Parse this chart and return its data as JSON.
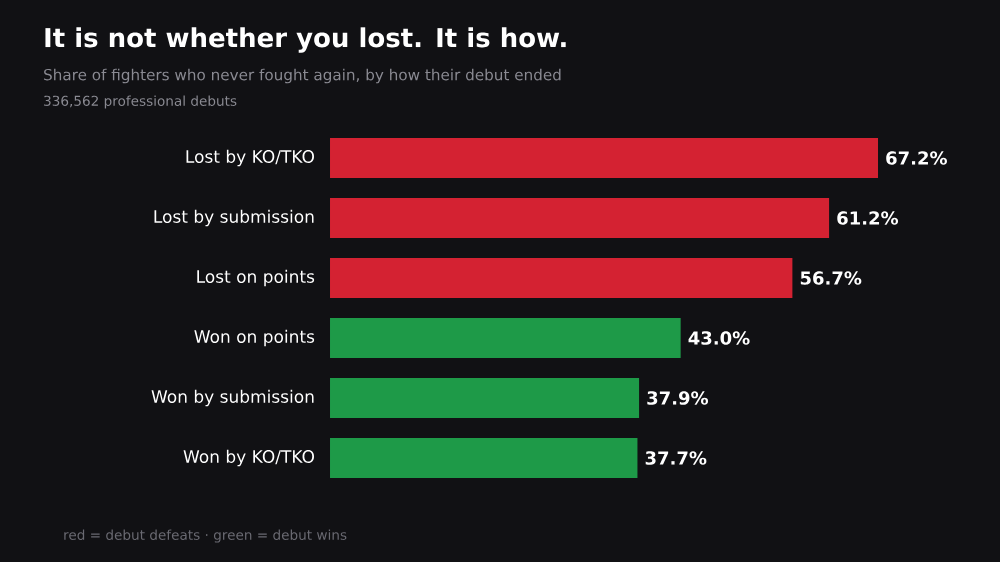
{
  "chart_data": {
    "type": "bar",
    "orientation": "horizontal",
    "title": "It is not whether you lost. It is how.",
    "subtitle": "Share of fighters who never fought again, by how their debut ended",
    "annotations": [
      "336,562 professional debuts",
      "red = debut defeats · green = debut wins"
    ],
    "categories": [
      "Lost by KO/TKO",
      "Lost by submission",
      "Lost on points",
      "Won on points",
      "Won by submission",
      "Won by KO/TKO"
    ],
    "values": [
      67.2,
      61.2,
      56.7,
      43.0,
      37.9,
      37.7
    ],
    "value_labels": [
      "67.2%",
      "61.2%",
      "56.7%",
      "43.0%",
      "37.9%",
      "37.7%"
    ],
    "colors": [
      "#d42232",
      "#d42232",
      "#d42232",
      "#1e9a48",
      "#1e9a48",
      "#1e9a48"
    ],
    "grid": false
  }
}
